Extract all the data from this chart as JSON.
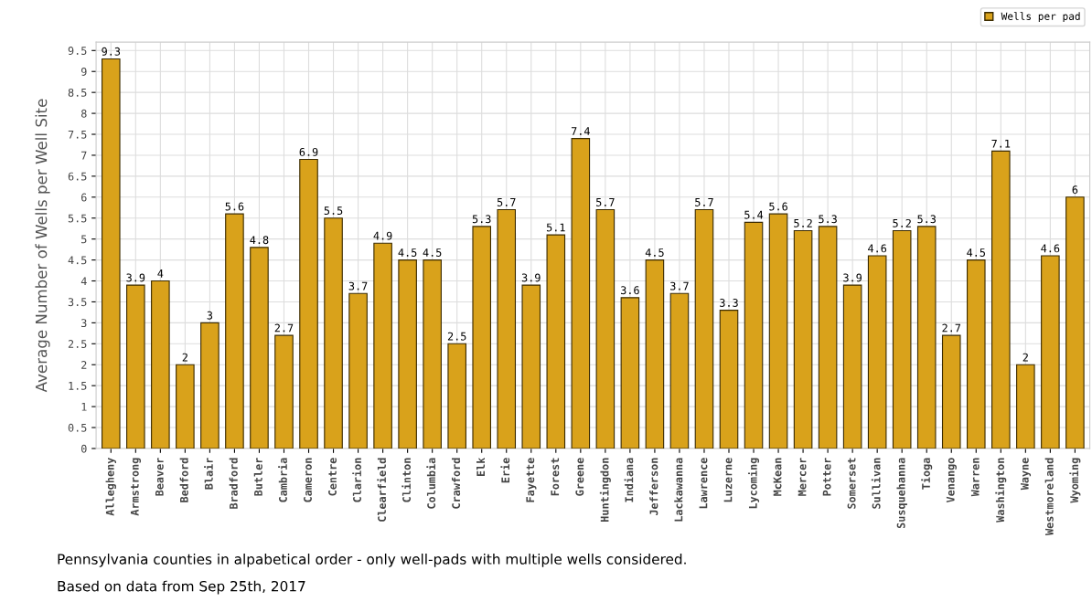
{
  "chart_data": {
    "type": "bar",
    "ylabel": "Average Number of Wells per Well Site",
    "categories": [
      "Allegheny",
      "Armstrong",
      "Beaver",
      "Bedford",
      "Blair",
      "Bradford",
      "Butler",
      "Cambria",
      "Cameron",
      "Centre",
      "Clarion",
      "Clearfield",
      "Clinton",
      "Columbia",
      "Crawford",
      "Elk",
      "Erie",
      "Fayette",
      "Forest",
      "Greene",
      "Huntingdon",
      "Indiana",
      "Jefferson",
      "Lackawanna",
      "Lawrence",
      "Luzerne",
      "Lycoming",
      "McKean",
      "Mercer",
      "Potter",
      "Somerset",
      "Sullivan",
      "Susquehanna",
      "Tioga",
      "Venango",
      "Warren",
      "Washington",
      "Wayne",
      "Westmoreland",
      "Wyoming"
    ],
    "series": [
      {
        "name": "Wells per pad",
        "color": "#d9a21b",
        "values": [
          9.3,
          3.9,
          4,
          2,
          3,
          5.6,
          4.8,
          2.7,
          6.9,
          5.5,
          3.7,
          4.9,
          4.5,
          4.5,
          2.5,
          5.3,
          5.7,
          3.9,
          5.1,
          7.4,
          5.7,
          3.6,
          4.5,
          3.7,
          5.7,
          3.3,
          5.4,
          5.6,
          5.2,
          5.3,
          3.9,
          4.6,
          5.2,
          5.3,
          2.7,
          4.5,
          7.1,
          2,
          4.6,
          6
        ]
      }
    ],
    "ylim": [
      0,
      9.7
    ],
    "yticks": [
      0,
      0.5,
      1,
      1.5,
      2,
      2.5,
      3,
      3.5,
      4,
      4.5,
      5,
      5.5,
      6,
      6.5,
      7,
      7.5,
      8,
      8.5,
      9,
      9.5
    ],
    "grid": true,
    "legend": "top right",
    "data_labels": true,
    "annotations": [
      "Pennsylvania counties in alpabetical order - only well-pads with multiple wells considered.",
      "Based on data from Sep 25th, 2017"
    ]
  }
}
